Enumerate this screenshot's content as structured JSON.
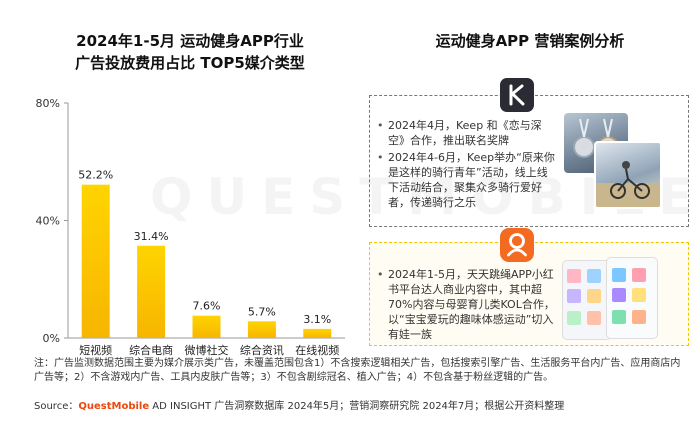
{
  "left_title": {
    "line1": "2024年1-5月 运动健身APP行业",
    "line2": "广告投放费用占比 TOP5媒介类型"
  },
  "right_title": "运动健身APP 营销案例分析",
  "chart_data": {
    "type": "bar",
    "categories": [
      "短视频",
      "综合电商",
      "微博社交",
      "综合资讯",
      "在线视频"
    ],
    "values": [
      52.2,
      31.4,
      7.6,
      5.7,
      3.1
    ],
    "value_labels": [
      "52.2%",
      "31.4%",
      "7.6%",
      "5.7%",
      "3.1%"
    ],
    "ylim": [
      0,
      80
    ],
    "yticks": [
      0,
      40,
      80
    ],
    "ytick_labels": [
      "0%",
      "40%",
      "80%"
    ],
    "grid": false,
    "colors": {
      "bar_top": "#ffd400",
      "bar_bottom": "#f7b500",
      "axis": "#9a9a9a"
    }
  },
  "watermark": "QUESTMOBILE",
  "cases": [
    {
      "brand_icon": "keep-logo-icon",
      "items": [
        "2024年4月，Keep 和《恋与深空》合作，推出联名奖牌",
        "2024年4-6月，Keep举办“原来你是这样的骑行青年”活动，线上线下活动结合，聚集众多骑行爱好者，传递骑行之乐"
      ]
    },
    {
      "brand_icon": "tiantiantiaosheng-logo-icon",
      "items": [
        "2024年1-5月，天天跳绳APP小红书平台达人商业内容中，其中超70%内容与母婴育儿类KOL合作，以“宝宝爱玩的趣味体感运动”切入有娃一族"
      ]
    }
  ],
  "note": "注：广告监测数据范围主要为媒介展示类广告，未覆盖范围包含1）不含搜索逻辑相关广告，包括搜索引擎广告、生活服务平台内广告、应用商店内广告等；2）不含游戏内广告、工具内皮肤广告等；3）不包含剧综冠名、植入广告；4）不包含基于粉丝逻辑的广告。",
  "source": {
    "prefix": "Source：",
    "brand": "QuestMobile",
    "rest": " AD INSIGHT 广告洞察数据库 2024年5月；营销洞察研究院 2024年7月；根据公开资料整理"
  }
}
